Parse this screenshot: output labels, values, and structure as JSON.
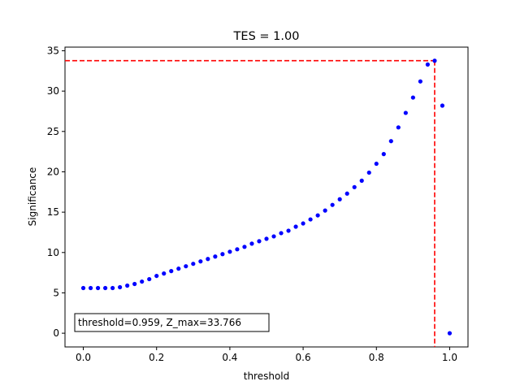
{
  "chart_data": {
    "type": "scatter",
    "title": "TES = 1.00",
    "xlabel": "threshold",
    "ylabel": "Significance",
    "xlim": [
      -0.05,
      1.05
    ],
    "ylim": [
      -1.7,
      35.45
    ],
    "xticks": [
      0.0,
      0.2,
      0.4,
      0.6,
      0.8,
      1.0
    ],
    "xtick_labels": [
      "0.0",
      "0.2",
      "0.4",
      "0.6",
      "0.8",
      "1.0"
    ],
    "yticks": [
      0,
      5,
      10,
      15,
      20,
      25,
      30,
      35
    ],
    "ytick_labels": [
      "0",
      "5",
      "10",
      "15",
      "20",
      "25",
      "30",
      "35"
    ],
    "grid": false,
    "series": [
      {
        "name": "significance",
        "color": "#0000ff",
        "x": [
          0.0,
          0.02,
          0.04,
          0.06,
          0.08,
          0.1,
          0.12,
          0.14,
          0.16,
          0.18,
          0.2,
          0.22,
          0.24,
          0.26,
          0.28,
          0.3,
          0.32,
          0.34,
          0.36,
          0.38,
          0.4,
          0.42,
          0.44,
          0.46,
          0.48,
          0.5,
          0.52,
          0.54,
          0.56,
          0.58,
          0.6,
          0.62,
          0.64,
          0.66,
          0.68,
          0.7,
          0.72,
          0.74,
          0.76,
          0.78,
          0.8,
          0.82,
          0.84,
          0.86,
          0.88,
          0.9,
          0.92,
          0.94,
          0.959,
          0.98,
          1.0
        ],
        "y": [
          5.6,
          5.6,
          5.6,
          5.6,
          5.6,
          5.7,
          5.9,
          6.1,
          6.4,
          6.7,
          7.1,
          7.4,
          7.7,
          8.0,
          8.3,
          8.6,
          8.9,
          9.2,
          9.5,
          9.8,
          10.1,
          10.4,
          10.7,
          11.1,
          11.4,
          11.7,
          12.0,
          12.4,
          12.7,
          13.2,
          13.6,
          14.1,
          14.6,
          15.2,
          15.9,
          16.6,
          17.3,
          18.1,
          18.9,
          19.9,
          21.0,
          22.2,
          23.8,
          25.5,
          27.3,
          29.2,
          31.2,
          33.3,
          33.766,
          28.2,
          0.0
        ]
      }
    ],
    "reference_lines": {
      "color": "#ff0000",
      "x_value": 0.959,
      "y_value": 33.766
    },
    "annotation": "threshold=0.959, Z_max=33.766"
  }
}
